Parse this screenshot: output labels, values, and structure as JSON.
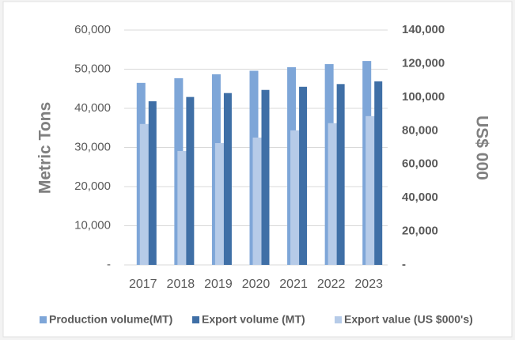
{
  "chart_data": {
    "type": "bar",
    "categories": [
      "2017",
      "2018",
      "2019",
      "2020",
      "2021",
      "2022",
      "2023"
    ],
    "series": [
      {
        "name": "Production volume(MT)",
        "color": "#7ea6d8",
        "values": [
          46500,
          47700,
          48700,
          49600,
          50500,
          51300,
          52100
        ]
      },
      {
        "name": "Export volume (MT)",
        "color": "#3f6fa6",
        "values": [
          41800,
          42900,
          43900,
          44700,
          45500,
          46200,
          46900
        ]
      },
      {
        "name": "Export value (US $000's)",
        "color": "#b6cbe8",
        "axis": "y2",
        "values": [
          84000,
          67900,
          72600,
          75900,
          80200,
          84500,
          88700
        ]
      }
    ],
    "ylabel": "Metric Tons",
    "y2label": "US$ 000",
    "ylim": [
      0,
      60000
    ],
    "yticks": [
      {
        "value": 0,
        "label": "-"
      },
      {
        "value": 10000,
        "label": "10,000"
      },
      {
        "value": 20000,
        "label": "20,000"
      },
      {
        "value": 30000,
        "label": "30,000"
      },
      {
        "value": 40000,
        "label": "40,000"
      },
      {
        "value": 50000,
        "label": "50,000"
      },
      {
        "value": 60000,
        "label": "60,000"
      }
    ],
    "y2lim": [
      0,
      140000
    ],
    "y2ticks": [
      {
        "value": 0,
        "label": "-"
      },
      {
        "value": 20000,
        "label": "20,000"
      },
      {
        "value": 40000,
        "label": "40,000"
      },
      {
        "value": 60000,
        "label": "60,000"
      },
      {
        "value": 80000,
        "label": "80,000"
      },
      {
        "value": 100000,
        "label": "100,000"
      },
      {
        "value": 120000,
        "label": "120,000"
      },
      {
        "value": 140000,
        "label": "140,000"
      }
    ],
    "grid": true,
    "legend": "bottom"
  }
}
